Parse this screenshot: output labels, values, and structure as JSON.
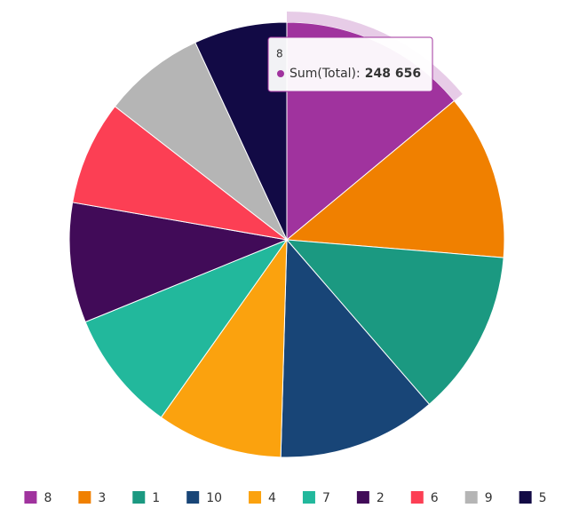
{
  "chart_data": {
    "type": "pie",
    "categories": [
      "8",
      "3",
      "1",
      "10",
      "4",
      "7",
      "2",
      "6",
      "9",
      "5"
    ],
    "values": [
      248656,
      219500,
      219500,
      210100,
      166600,
      160700,
      158700,
      137900,
      134900,
      123100
    ],
    "value_labels": [
      "248 656",
      null,
      null,
      null,
      null,
      null,
      null,
      null,
      null,
      null
    ],
    "colors": [
      "#a0339e",
      "#f08000",
      "#1b9981",
      "#184577",
      "#fba20e",
      "#22b89c",
      "#410b58",
      "#fc3f54",
      "#b5b5b5",
      "#120a45"
    ],
    "series_name": "Sum(Total):",
    "legend": "bottom"
  }
}
